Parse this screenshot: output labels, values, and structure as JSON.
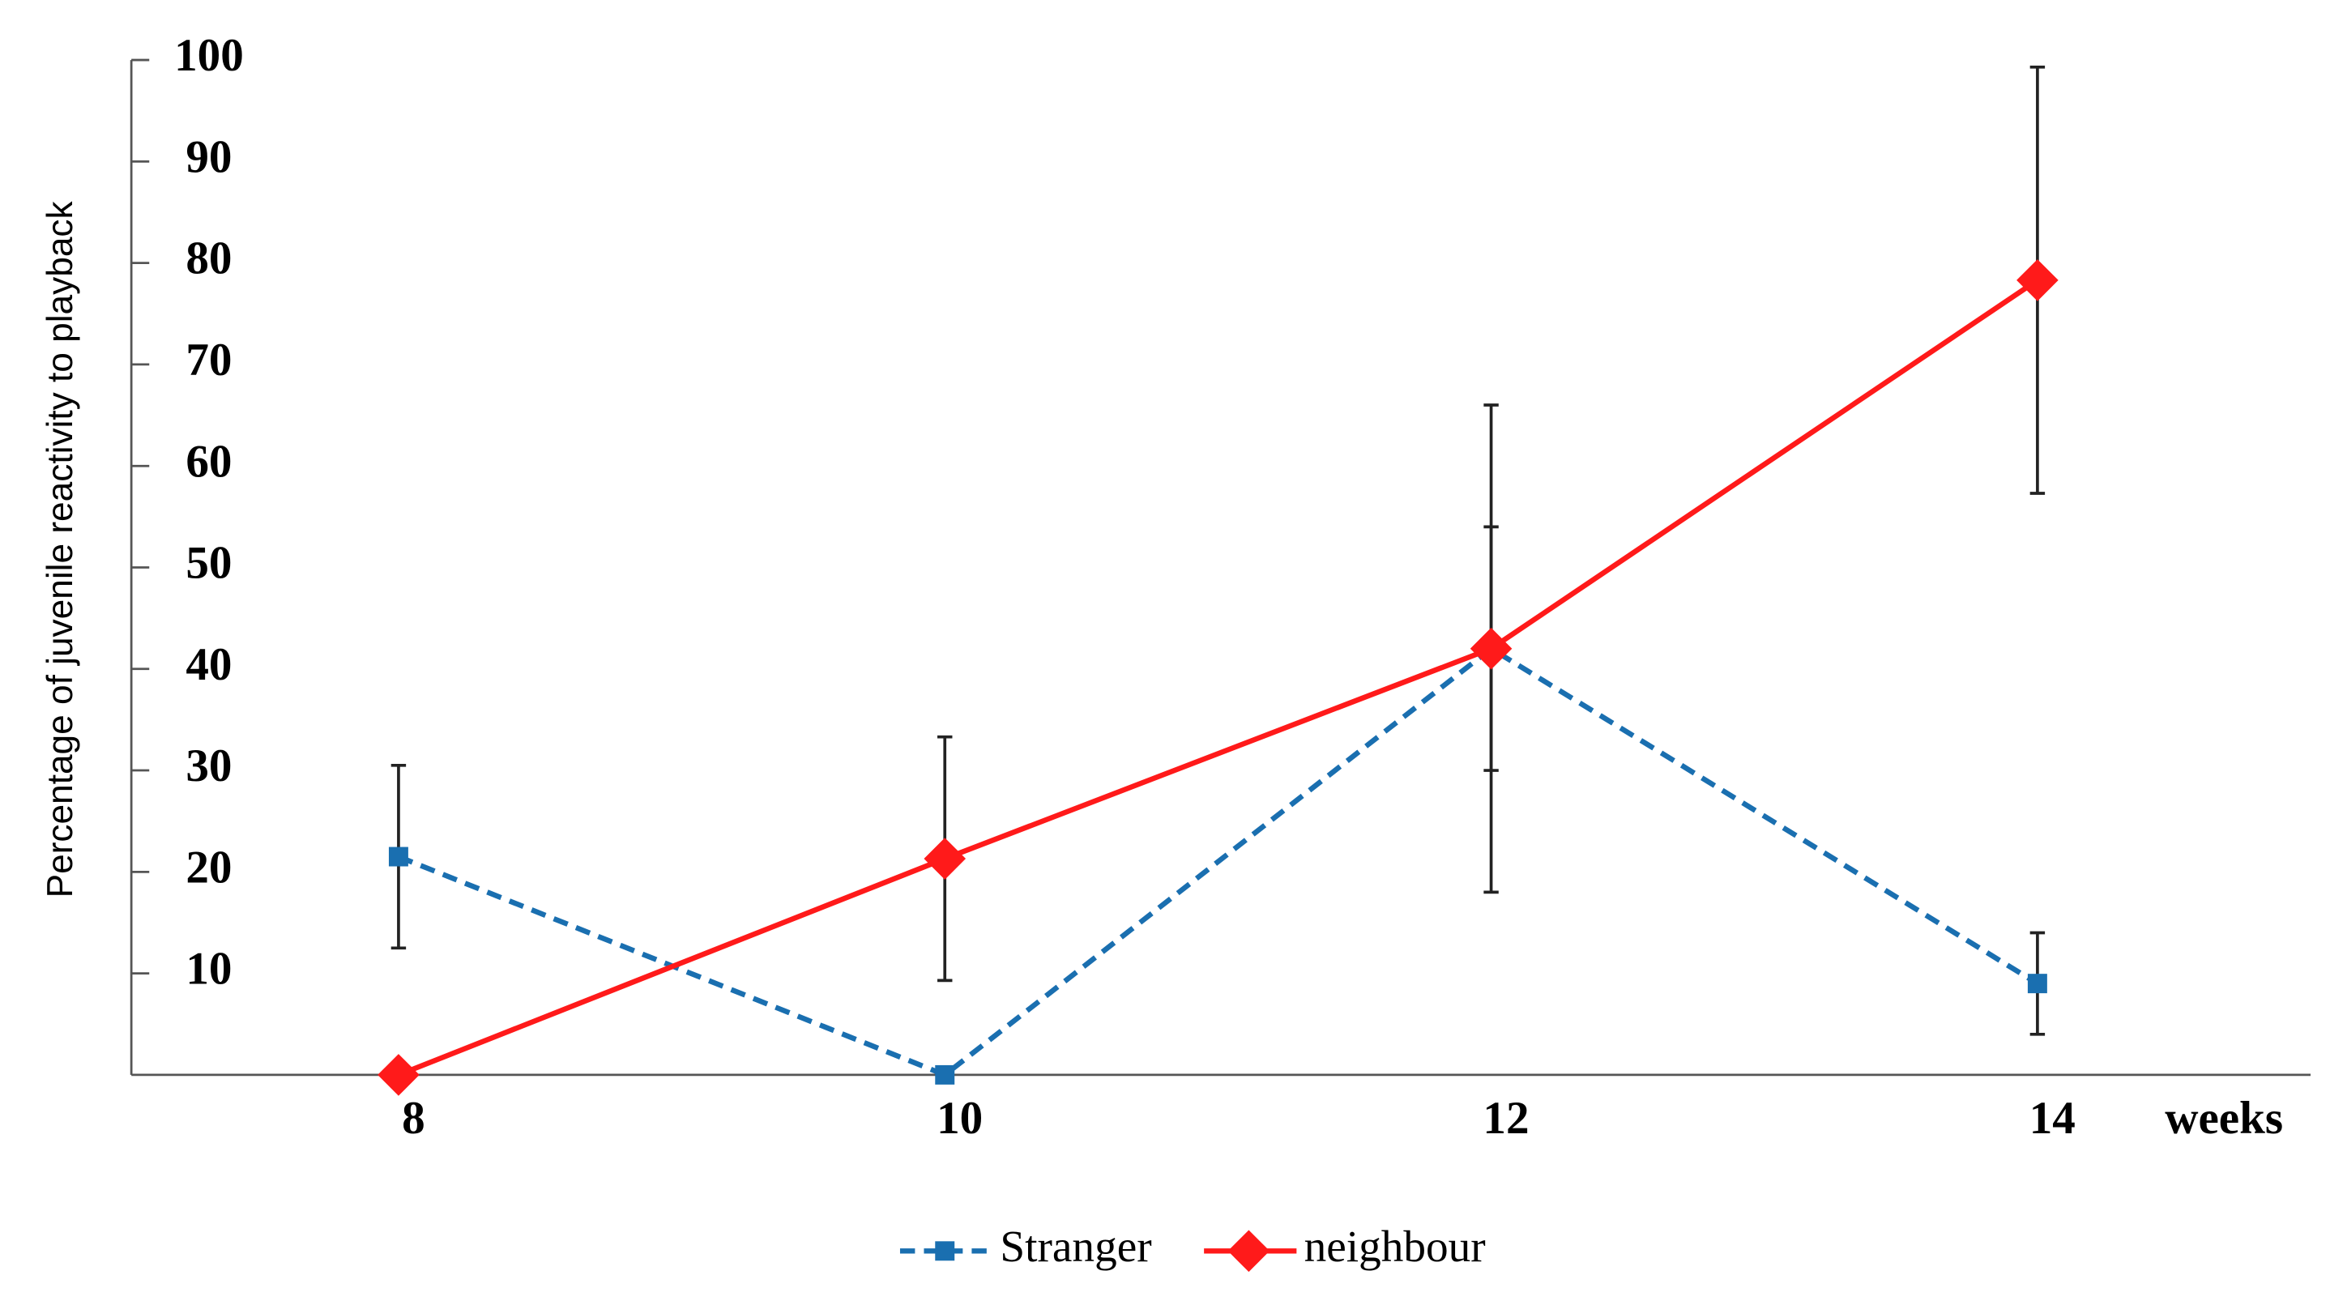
{
  "chart_data": {
    "type": "line",
    "categories": [
      "8",
      "10",
      "12",
      "14"
    ],
    "x_label": "weeks",
    "y_label": "Percentage of juvenile reactivity to playback",
    "series": [
      {
        "name": "Stranger",
        "color": "#1a6fb0",
        "line_style": "dashed",
        "marker": "square",
        "values": [
          21.5,
          0,
          42,
          9
        ],
        "errors": [
          9,
          null,
          12,
          5
        ]
      },
      {
        "name": "neighbour",
        "color": "#ff1a1a",
        "line_style": "solid",
        "marker": "diamond",
        "values": [
          0,
          21.3,
          42,
          78.3
        ],
        "errors": [
          null,
          12,
          24,
          21
        ]
      }
    ],
    "ylim": [
      0,
      100
    ],
    "yticks": [
      10,
      20,
      30,
      40,
      50,
      60,
      70,
      80,
      90,
      100
    ],
    "legend": "bottom"
  }
}
